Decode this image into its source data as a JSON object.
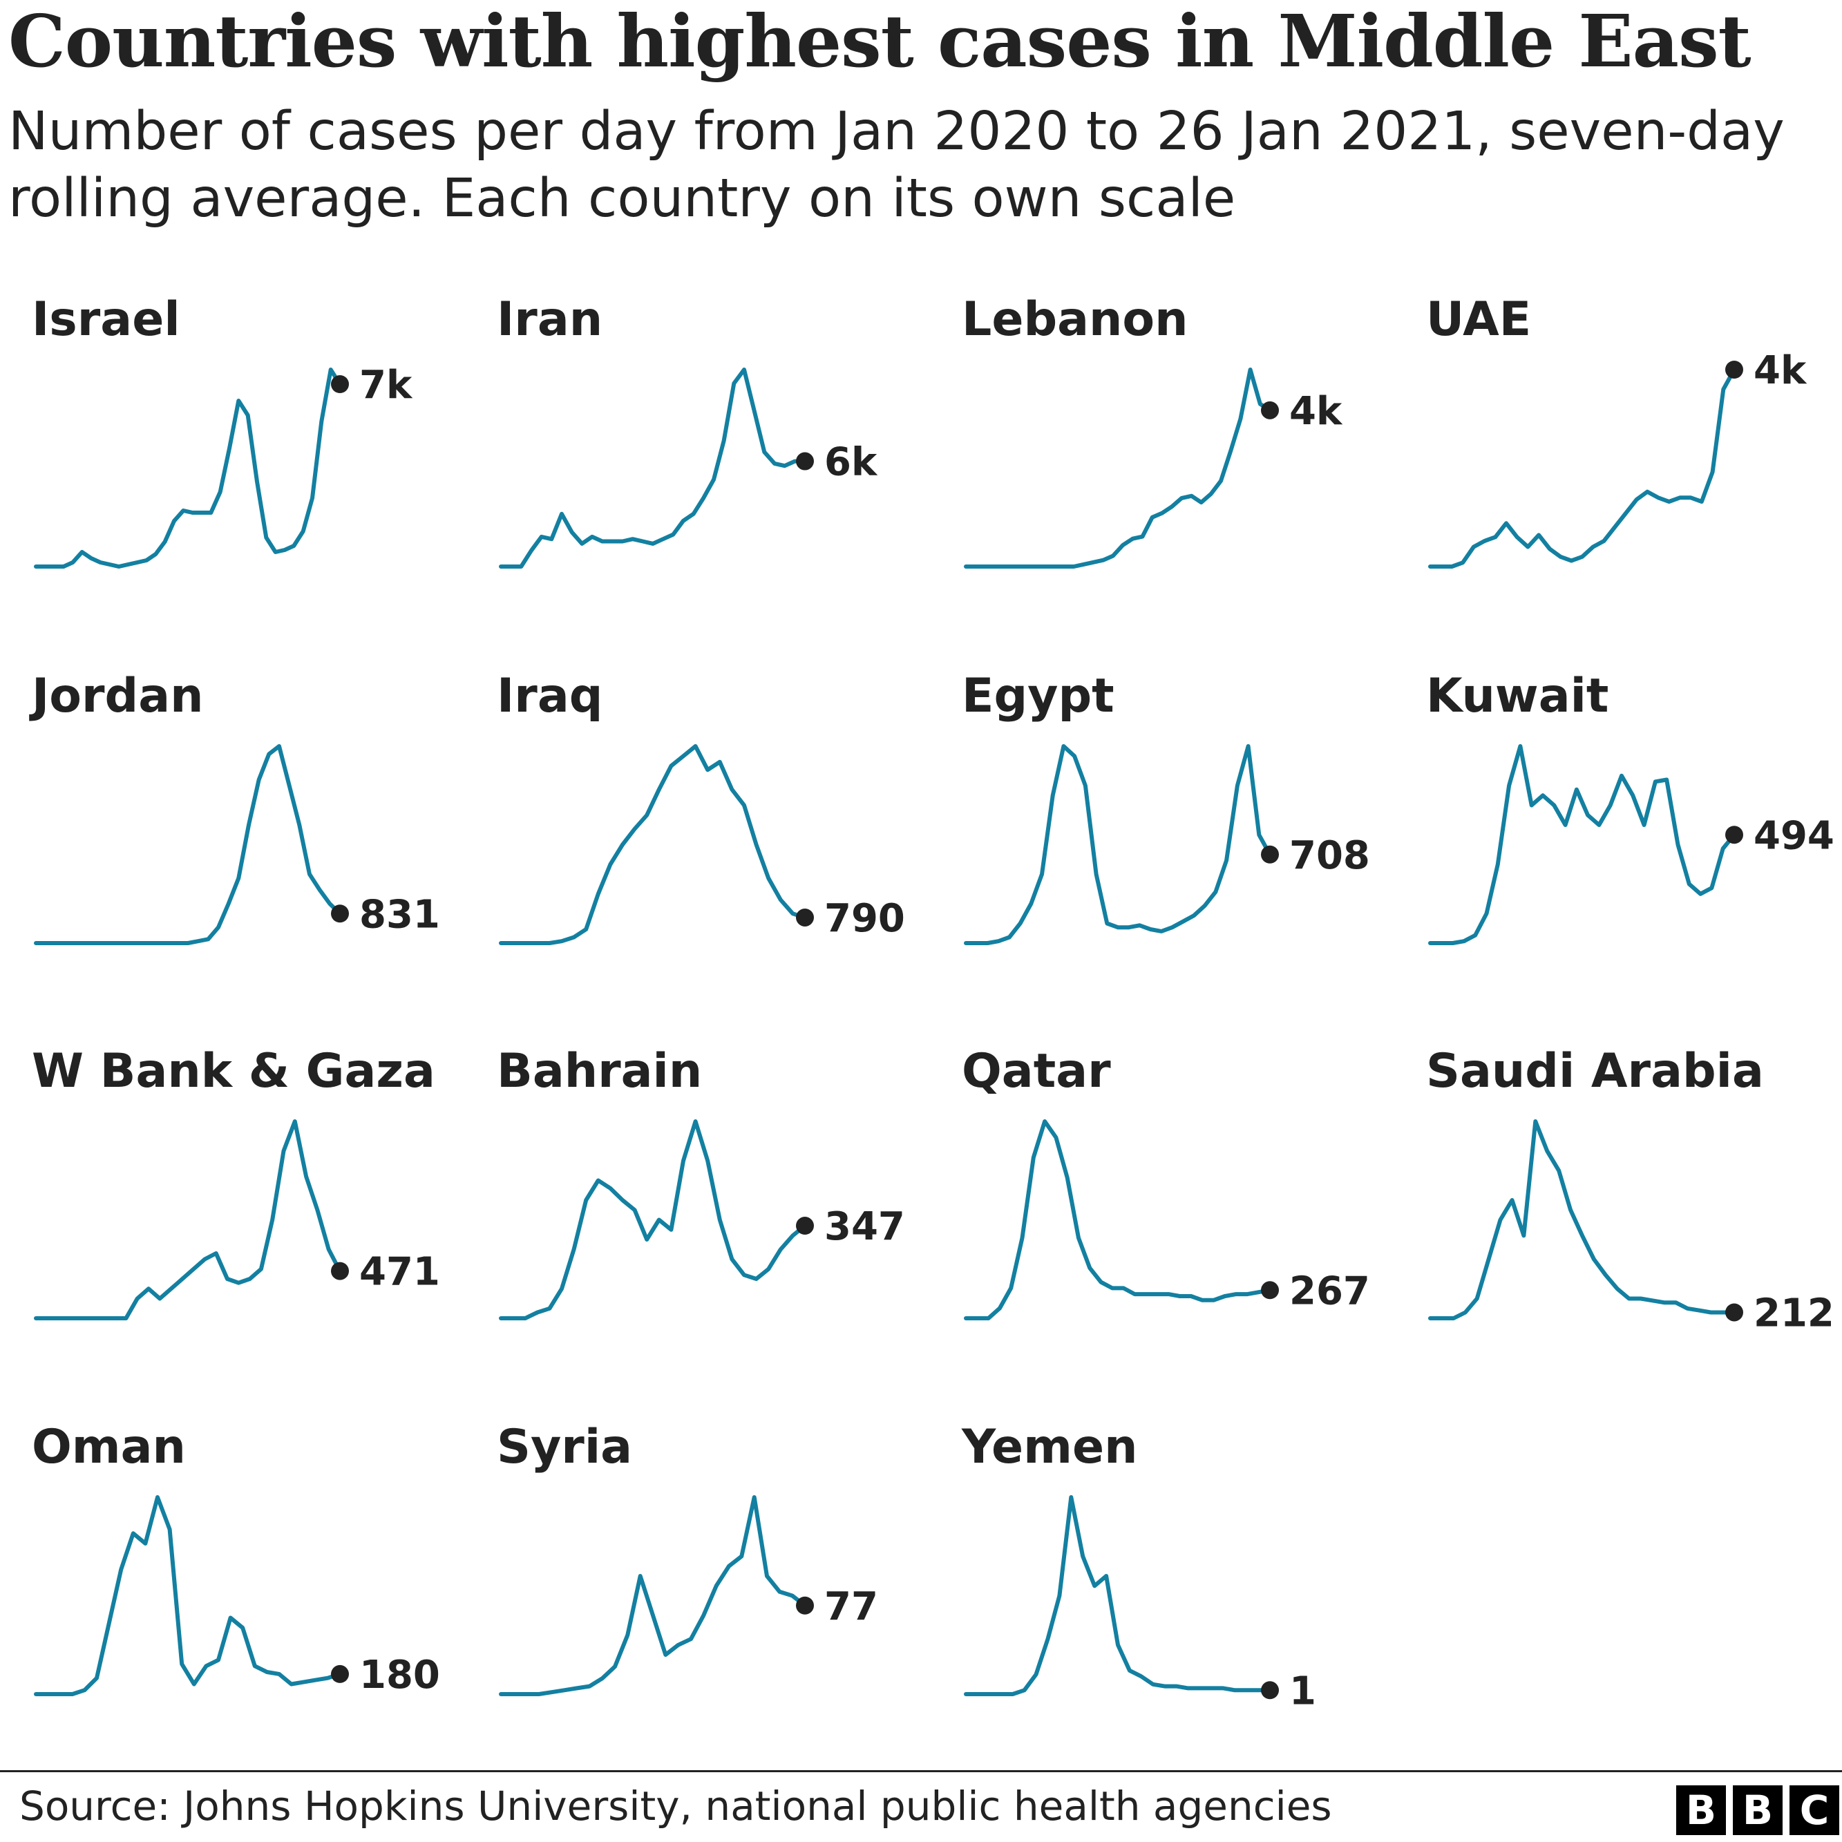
{
  "title": "Countries with highest cases in Middle East",
  "subtitle": "Number of cases per day from Jan 2020 to 26 Jan 2021, seven-day rolling average. Each country on its own scale",
  "source": "Source: Johns Hopkins University, national public health agencies",
  "logo": {
    "text": "BBC",
    "letters": [
      "B",
      "B",
      "C"
    ]
  },
  "colors": {
    "line": "#1380a1",
    "marker": "#222222",
    "text": "#222222"
  },
  "chart_data": {
    "type": "line",
    "layout": "small-multiples",
    "grid": false,
    "x_range": [
      "Jan 2020",
      "26 Jan 2021"
    ],
    "series": [
      {
        "name": "Israel",
        "last_label": "7k",
        "values": [
          0,
          0,
          0,
          0,
          2,
          7,
          4,
          2,
          1,
          0,
          1,
          2,
          3,
          6,
          12,
          22,
          27,
          26,
          26,
          26,
          36,
          57,
          80,
          73,
          41,
          14,
          7,
          8,
          10,
          17,
          33,
          70,
          95,
          88
        ]
      },
      {
        "name": "Iran",
        "last_label": "6k",
        "values": [
          0,
          0,
          0,
          7,
          13,
          12,
          23,
          15,
          10,
          13,
          11,
          11,
          11,
          12,
          11,
          10,
          12,
          14,
          20,
          23,
          30,
          38,
          55,
          80,
          86,
          68,
          50,
          45,
          44,
          46,
          46
        ]
      },
      {
        "name": "Lebanon",
        "last_label": "4k",
        "values": [
          0,
          0,
          0,
          0,
          0,
          0,
          0,
          0,
          0,
          0,
          0,
          0,
          1,
          2,
          3,
          5,
          10,
          13,
          14,
          23,
          25,
          28,
          32,
          33,
          30,
          34,
          40,
          54,
          69,
          92,
          76,
          73
        ]
      },
      {
        "name": "UAE",
        "last_label": "4k",
        "values": [
          0,
          0,
          0,
          2,
          10,
          13,
          15,
          22,
          15,
          10,
          16,
          9,
          5,
          3,
          5,
          10,
          13,
          20,
          27,
          34,
          38,
          35,
          33,
          35,
          35,
          33,
          48,
          90,
          100
        ]
      },
      {
        "name": "Jordan",
        "last_label": "831",
        "values": [
          0,
          0,
          0,
          0,
          0,
          0,
          0,
          0,
          0,
          0,
          0,
          0,
          0,
          0,
          0,
          0,
          1,
          2,
          8,
          20,
          33,
          60,
          83,
          96,
          100,
          80,
          60,
          35,
          27,
          20,
          15
        ]
      },
      {
        "name": "Iraq",
        "last_label": "790",
        "values": [
          0,
          0,
          0,
          0,
          0,
          1,
          3,
          7,
          25,
          40,
          50,
          58,
          65,
          78,
          90,
          95,
          100,
          88,
          92,
          78,
          70,
          50,
          33,
          22,
          15,
          13
        ]
      },
      {
        "name": "Egypt",
        "last_label": "708",
        "values": [
          0,
          0,
          0,
          1,
          3,
          10,
          20,
          35,
          75,
          100,
          95,
          80,
          35,
          10,
          8,
          8,
          9,
          7,
          6,
          8,
          11,
          14,
          19,
          26,
          42,
          80,
          100,
          55,
          45
        ]
      },
      {
        "name": "Kuwait",
        "last_label": "494",
        "values": [
          0,
          0,
          0,
          1,
          4,
          15,
          40,
          80,
          100,
          70,
          75,
          70,
          60,
          78,
          65,
          60,
          70,
          85,
          75,
          60,
          82,
          83,
          50,
          30,
          25,
          28,
          48,
          55
        ]
      },
      {
        "name": "W Bank & Gaza",
        "last_label": "471",
        "values": [
          0,
          0,
          0,
          0,
          0,
          0,
          0,
          0,
          0,
          10,
          15,
          10,
          15,
          20,
          25,
          30,
          33,
          20,
          18,
          20,
          25,
          50,
          85,
          100,
          72,
          55,
          35,
          24
        ]
      },
      {
        "name": "Bahrain",
        "last_label": "347",
        "values": [
          0,
          0,
          0,
          3,
          5,
          15,
          35,
          60,
          70,
          66,
          60,
          55,
          40,
          50,
          45,
          80,
          100,
          80,
          50,
          30,
          22,
          20,
          25,
          35,
          42,
          47
        ]
      },
      {
        "name": "Qatar",
        "last_label": "267",
        "values": [
          0,
          0,
          0,
          5,
          15,
          40,
          80,
          98,
          90,
          70,
          40,
          25,
          18,
          15,
          15,
          12,
          12,
          12,
          12,
          11,
          11,
          9,
          9,
          11,
          12,
          12,
          13,
          14
        ]
      },
      {
        "name": "Saudi Arabia",
        "last_label": "212",
        "values": [
          0,
          0,
          0,
          3,
          10,
          30,
          50,
          60,
          42,
          100,
          85,
          75,
          55,
          42,
          30,
          22,
          15,
          10,
          10,
          9,
          8,
          8,
          5,
          4,
          3,
          3,
          3
        ]
      },
      {
        "name": "Oman",
        "last_label": "180",
        "values": [
          0,
          0,
          0,
          0,
          2,
          8,
          35,
          62,
          80,
          75,
          98,
          82,
          15,
          5,
          14,
          17,
          38,
          33,
          14,
          11,
          10,
          5,
          6,
          7,
          8,
          10
        ]
      },
      {
        "name": "Syria",
        "last_label": "77",
        "values": [
          0,
          0,
          0,
          0,
          1,
          2,
          3,
          4,
          8,
          14,
          30,
          60,
          40,
          20,
          25,
          28,
          40,
          55,
          65,
          70,
          100,
          60,
          52,
          50,
          45
        ]
      },
      {
        "name": "Yemen",
        "last_label": "1",
        "values": [
          0,
          0,
          0,
          0,
          0,
          2,
          10,
          28,
          50,
          100,
          70,
          55,
          60,
          25,
          12,
          9,
          5,
          4,
          4,
          3,
          3,
          3,
          3,
          2,
          2,
          2,
          2
        ]
      }
    ]
  }
}
